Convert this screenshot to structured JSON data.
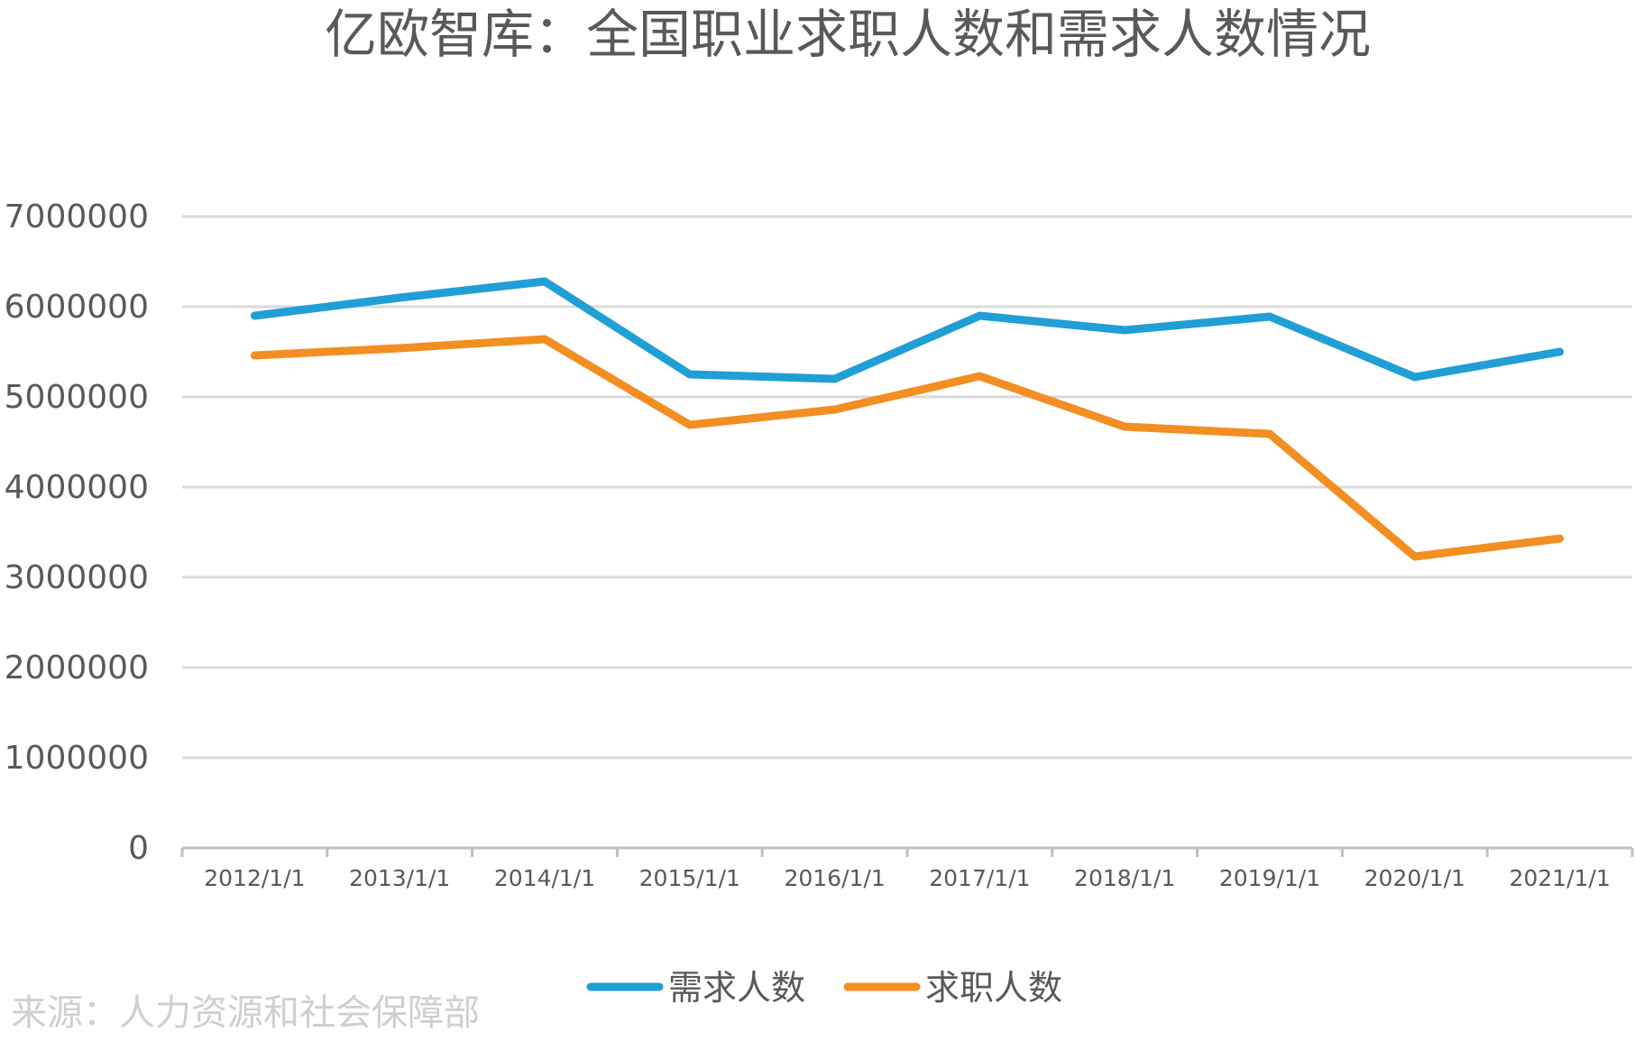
{
  "chart_data": {
    "type": "line",
    "title": "亿欧智库：全国职业求职人数和需求人数情况",
    "source": "来源：人力资源和社会保障部",
    "categories": [
      "2012/1/1",
      "2013/1/1",
      "2014/1/1",
      "2015/1/1",
      "2016/1/1",
      "2017/1/1",
      "2018/1/1",
      "2019/1/1",
      "2020/1/1",
      "2021/1/1"
    ],
    "series": [
      {
        "name": "需求人数",
        "color": "#1f9fd5",
        "values": [
          5900000,
          6100000,
          6280000,
          5250000,
          5200000,
          5900000,
          5740000,
          5890000,
          5220000,
          5500000
        ]
      },
      {
        "name": "求职人数",
        "color": "#f28e22",
        "values": [
          5460000,
          5540000,
          5640000,
          4690000,
          4860000,
          5230000,
          4670000,
          4590000,
          3230000,
          3430000
        ]
      }
    ],
    "yticks": [
      "0",
      "1000000",
      "2000000",
      "3000000",
      "4000000",
      "5000000",
      "6000000",
      "7000000"
    ],
    "ylim": [
      0,
      7000000
    ],
    "grid": true,
    "legend_position": "bottom"
  }
}
